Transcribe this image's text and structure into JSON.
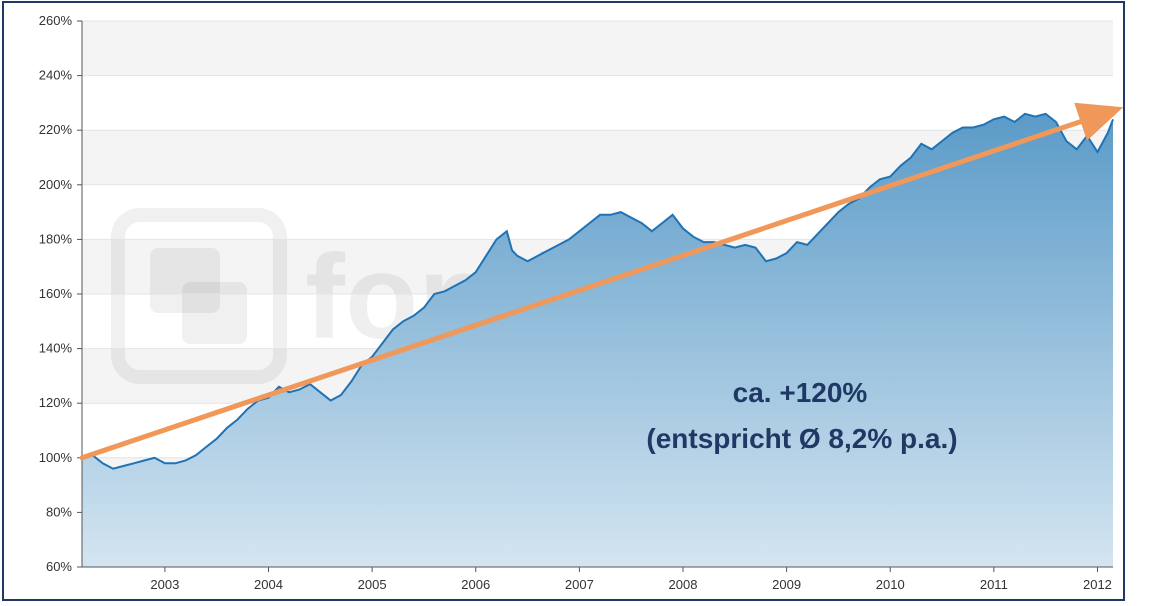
{
  "chart_data": {
    "type": "area",
    "y_axis": {
      "min": 60,
      "max": 260,
      "step": 20,
      "tick_labels": [
        "60%",
        "80%",
        "100%",
        "120%",
        "140%",
        "160%",
        "180%",
        "200%",
        "220%",
        "240%",
        "260%"
      ]
    },
    "x_axis": {
      "min": 2002.2,
      "max": 2012.15,
      "tick_labels": [
        "2003",
        "2004",
        "2005",
        "2006",
        "2007",
        "2008",
        "2009",
        "2010",
        "2011",
        "2012"
      ],
      "tick_positions": [
        2003,
        2004,
        2005,
        2006,
        2007,
        2008,
        2009,
        2010,
        2011,
        2012
      ]
    },
    "grid": true,
    "series": [
      {
        "x": [
          2002.2,
          2002.3,
          2002.4,
          2002.5,
          2002.6,
          2002.7,
          2002.8,
          2002.9,
          2003.0,
          2003.1,
          2003.2,
          2003.3,
          2003.4,
          2003.5,
          2003.6,
          2003.7,
          2003.8,
          2003.9,
          2004.0,
          2004.1,
          2004.2,
          2004.3,
          2004.4,
          2004.5,
          2004.6,
          2004.7,
          2004.8,
          2004.9,
          2005.0,
          2005.1,
          2005.2,
          2005.3,
          2005.4,
          2005.5,
          2005.6,
          2005.7,
          2005.8,
          2005.9,
          2006.0,
          2006.1,
          2006.2,
          2006.3,
          2006.35,
          2006.4,
          2006.5,
          2006.6,
          2006.7,
          2006.8,
          2006.9,
          2007.0,
          2007.1,
          2007.2,
          2007.3,
          2007.4,
          2007.5,
          2007.6,
          2007.7,
          2007.8,
          2007.9,
          2008.0,
          2008.1,
          2008.2,
          2008.3,
          2008.4,
          2008.5,
          2008.6,
          2008.7,
          2008.8,
          2008.9,
          2009.0,
          2009.1,
          2009.2,
          2009.3,
          2009.4,
          2009.5,
          2009.6,
          2009.7,
          2009.8,
          2009.9,
          2010.0,
          2010.1,
          2010.2,
          2010.3,
          2010.4,
          2010.5,
          2010.6,
          2010.7,
          2010.8,
          2010.9,
          2011.0,
          2011.1,
          2011.2,
          2011.3,
          2011.4,
          2011.5,
          2011.6,
          2011.7,
          2011.8,
          2011.9,
          2012.0,
          2012.1,
          2012.15
        ],
        "values": [
          100,
          101,
          98,
          96,
          97,
          98,
          99,
          100,
          98,
          98,
          99,
          101,
          104,
          107,
          111,
          114,
          118,
          121,
          122,
          126,
          124,
          125,
          127,
          124,
          121,
          123,
          128,
          134,
          137,
          142,
          147,
          150,
          152,
          155,
          160,
          161,
          163,
          165,
          168,
          174,
          180,
          183,
          176,
          174,
          172,
          174,
          176,
          178,
          180,
          183,
          186,
          189,
          189,
          190,
          188,
          186,
          183,
          186,
          189,
          184,
          181,
          179,
          179,
          178,
          177,
          178,
          177,
          172,
          173,
          175,
          179,
          178,
          182,
          186,
          190,
          193,
          195,
          199,
          202,
          203,
          207,
          210,
          215,
          213,
          216,
          219,
          221,
          221,
          222,
          224,
          225,
          223,
          226,
          225,
          226,
          223,
          216,
          213,
          218,
          212,
          219,
          224
        ]
      }
    ],
    "trend_arrow": {
      "from": {
        "x": 2002.2,
        "y": 100
      },
      "to": {
        "x": 2012.15,
        "y": 227
      }
    },
    "annotations": [
      "ca. +120%",
      "(entspricht Ø 8,2% p.a.)"
    ],
    "watermark": "fondsweb.de",
    "colors": {
      "line": "#1f73b5",
      "area_top": "#5b9bc8",
      "area_bottom": "#d4e5f1",
      "arrow": "#f0975a",
      "annotation": "#1f3864",
      "frame": "#1f3864",
      "band": "#f4f4f4",
      "grid": "#e4e4e4"
    }
  }
}
